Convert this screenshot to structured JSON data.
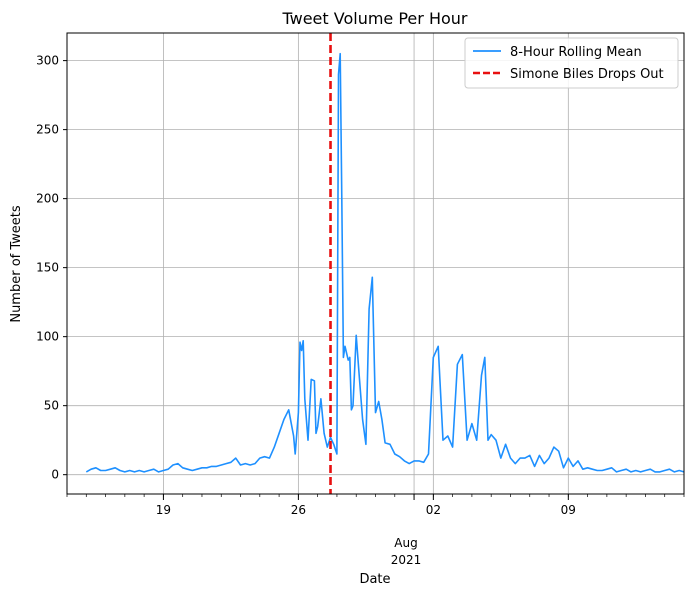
{
  "chart_data": {
    "type": "line",
    "title": "Tweet Volume Per Hour",
    "xlabel": "Date",
    "ylabel": "Number of Tweets",
    "xlim": [
      "2021-07-14",
      "2021-08-15"
    ],
    "ylim": [
      -14,
      320
    ],
    "grid": true,
    "legend_position": "top-right",
    "y_ticks": [
      0,
      50,
      100,
      150,
      200,
      250,
      300
    ],
    "x_ticks": [
      {
        "date": "2021-07-19",
        "label": "19"
      },
      {
        "date": "2021-07-26",
        "label": "26"
      },
      {
        "date": "2021-08-02",
        "label": "02"
      },
      {
        "date": "2021-08-09",
        "label": "09"
      }
    ],
    "x_axis_annotation": {
      "month": "Aug",
      "year": "2021"
    },
    "series": [
      {
        "name": "8-Hour Rolling Mean",
        "color": "#1e90ff",
        "style": "solid",
        "points": [
          [
            "2021-07-15 00:00",
            2
          ],
          [
            "2021-07-15 06:00",
            4
          ],
          [
            "2021-07-15 12:00",
            5
          ],
          [
            "2021-07-15 18:00",
            3
          ],
          [
            "2021-07-16 00:00",
            3
          ],
          [
            "2021-07-16 06:00",
            4
          ],
          [
            "2021-07-16 12:00",
            5
          ],
          [
            "2021-07-16 18:00",
            3
          ],
          [
            "2021-07-17 00:00",
            2
          ],
          [
            "2021-07-17 06:00",
            3
          ],
          [
            "2021-07-17 12:00",
            2
          ],
          [
            "2021-07-17 18:00",
            3
          ],
          [
            "2021-07-18 00:00",
            2
          ],
          [
            "2021-07-18 06:00",
            3
          ],
          [
            "2021-07-18 12:00",
            4
          ],
          [
            "2021-07-18 18:00",
            2
          ],
          [
            "2021-07-19 00:00",
            3
          ],
          [
            "2021-07-19 06:00",
            4
          ],
          [
            "2021-07-19 12:00",
            7
          ],
          [
            "2021-07-19 18:00",
            8
          ],
          [
            "2021-07-20 00:00",
            5
          ],
          [
            "2021-07-20 06:00",
            4
          ],
          [
            "2021-07-20 12:00",
            3
          ],
          [
            "2021-07-20 18:00",
            4
          ],
          [
            "2021-07-21 00:00",
            5
          ],
          [
            "2021-07-21 06:00",
            5
          ],
          [
            "2021-07-21 12:00",
            6
          ],
          [
            "2021-07-21 18:00",
            6
          ],
          [
            "2021-07-22 00:00",
            7
          ],
          [
            "2021-07-22 06:00",
            8
          ],
          [
            "2021-07-22 12:00",
            9
          ],
          [
            "2021-07-22 18:00",
            12
          ],
          [
            "2021-07-23 00:00",
            7
          ],
          [
            "2021-07-23 06:00",
            8
          ],
          [
            "2021-07-23 12:00",
            7
          ],
          [
            "2021-07-23 18:00",
            8
          ],
          [
            "2021-07-24 00:00",
            12
          ],
          [
            "2021-07-24 06:00",
            13
          ],
          [
            "2021-07-24 12:00",
            12
          ],
          [
            "2021-07-24 18:00",
            20
          ],
          [
            "2021-07-25 00:00",
            30
          ],
          [
            "2021-07-25 06:00",
            40
          ],
          [
            "2021-07-25 12:00",
            47
          ],
          [
            "2021-07-25 18:00",
            28
          ],
          [
            "2021-07-25 20:00",
            15
          ],
          [
            "2021-07-26 00:00",
            45
          ],
          [
            "2021-07-26 02:00",
            96
          ],
          [
            "2021-07-26 04:00",
            90
          ],
          [
            "2021-07-26 06:00",
            97
          ],
          [
            "2021-07-26 08:00",
            55
          ],
          [
            "2021-07-26 12:00",
            25
          ],
          [
            "2021-07-26 16:00",
            69
          ],
          [
            "2021-07-26 20:00",
            68
          ],
          [
            "2021-07-26 22:00",
            30
          ],
          [
            "2021-07-27 00:00",
            35
          ],
          [
            "2021-07-27 04:00",
            55
          ],
          [
            "2021-07-27 08:00",
            30
          ],
          [
            "2021-07-27 12:00",
            20
          ],
          [
            "2021-07-27 16:00",
            27
          ],
          [
            "2021-07-27 20:00",
            22
          ],
          [
            "2021-07-28 00:00",
            15
          ],
          [
            "2021-07-28 02:00",
            290
          ],
          [
            "2021-07-28 04:00",
            305
          ],
          [
            "2021-07-28 06:00",
            200
          ],
          [
            "2021-07-28 08:00",
            85
          ],
          [
            "2021-07-28 10:00",
            93
          ],
          [
            "2021-07-28 12:00",
            88
          ],
          [
            "2021-07-28 14:00",
            83
          ],
          [
            "2021-07-28 16:00",
            85
          ],
          [
            "2021-07-28 18:00",
            47
          ],
          [
            "2021-07-28 20:00",
            50
          ],
          [
            "2021-07-29 00:00",
            101
          ],
          [
            "2021-07-29 04:00",
            70
          ],
          [
            "2021-07-29 08:00",
            40
          ],
          [
            "2021-07-29 12:00",
            22
          ],
          [
            "2021-07-29 16:00",
            120
          ],
          [
            "2021-07-29 20:00",
            143
          ],
          [
            "2021-07-30 00:00",
            45
          ],
          [
            "2021-07-30 04:00",
            53
          ],
          [
            "2021-07-30 08:00",
            40
          ],
          [
            "2021-07-30 12:00",
            23
          ],
          [
            "2021-07-30 18:00",
            22
          ],
          [
            "2021-07-31 00:00",
            15
          ],
          [
            "2021-07-31 06:00",
            13
          ],
          [
            "2021-07-31 12:00",
            10
          ],
          [
            "2021-07-31 18:00",
            8
          ],
          [
            "2021-08-01 00:00",
            10
          ],
          [
            "2021-08-01 06:00",
            10
          ],
          [
            "2021-08-01 12:00",
            9
          ],
          [
            "2021-08-01 18:00",
            15
          ],
          [
            "2021-08-02 00:00",
            85
          ],
          [
            "2021-08-02 06:00",
            93
          ],
          [
            "2021-08-02 12:00",
            25
          ],
          [
            "2021-08-02 18:00",
            28
          ],
          [
            "2021-08-03 00:00",
            20
          ],
          [
            "2021-08-03 06:00",
            80
          ],
          [
            "2021-08-03 12:00",
            87
          ],
          [
            "2021-08-03 18:00",
            25
          ],
          [
            "2021-08-04 00:00",
            37
          ],
          [
            "2021-08-04 06:00",
            25
          ],
          [
            "2021-08-04 12:00",
            72
          ],
          [
            "2021-08-04 16:00",
            85
          ],
          [
            "2021-08-04 20:00",
            25
          ],
          [
            "2021-08-05 00:00",
            29
          ],
          [
            "2021-08-05 06:00",
            25
          ],
          [
            "2021-08-05 12:00",
            12
          ],
          [
            "2021-08-05 18:00",
            22
          ],
          [
            "2021-08-06 00:00",
            12
          ],
          [
            "2021-08-06 06:00",
            8
          ],
          [
            "2021-08-06 12:00",
            12
          ],
          [
            "2021-08-06 18:00",
            12
          ],
          [
            "2021-08-07 00:00",
            14
          ],
          [
            "2021-08-07 06:00",
            6
          ],
          [
            "2021-08-07 12:00",
            14
          ],
          [
            "2021-08-07 18:00",
            8
          ],
          [
            "2021-08-08 00:00",
            12
          ],
          [
            "2021-08-08 06:00",
            20
          ],
          [
            "2021-08-08 12:00",
            17
          ],
          [
            "2021-08-08 18:00",
            5
          ],
          [
            "2021-08-09 00:00",
            12
          ],
          [
            "2021-08-09 06:00",
            6
          ],
          [
            "2021-08-09 12:00",
            10
          ],
          [
            "2021-08-09 18:00",
            4
          ],
          [
            "2021-08-10 00:00",
            5
          ],
          [
            "2021-08-10 06:00",
            4
          ],
          [
            "2021-08-10 12:00",
            3
          ],
          [
            "2021-08-10 18:00",
            3
          ],
          [
            "2021-08-11 00:00",
            4
          ],
          [
            "2021-08-11 06:00",
            5
          ],
          [
            "2021-08-11 12:00",
            2
          ],
          [
            "2021-08-11 18:00",
            3
          ],
          [
            "2021-08-12 00:00",
            4
          ],
          [
            "2021-08-12 06:00",
            2
          ],
          [
            "2021-08-12 12:00",
            3
          ],
          [
            "2021-08-12 18:00",
            2
          ],
          [
            "2021-08-13 00:00",
            3
          ],
          [
            "2021-08-13 06:00",
            4
          ],
          [
            "2021-08-13 12:00",
            2
          ],
          [
            "2021-08-13 18:00",
            2
          ],
          [
            "2021-08-14 00:00",
            3
          ],
          [
            "2021-08-14 06:00",
            4
          ],
          [
            "2021-08-14 12:00",
            2
          ],
          [
            "2021-08-14 18:00",
            3
          ],
          [
            "2021-08-15 00:00",
            2
          ]
        ]
      },
      {
        "name": "Simone Biles Drops Out",
        "color": "#e81010",
        "style": "dashed",
        "vertical_line_at": "2021-07-27 16:00"
      }
    ]
  }
}
